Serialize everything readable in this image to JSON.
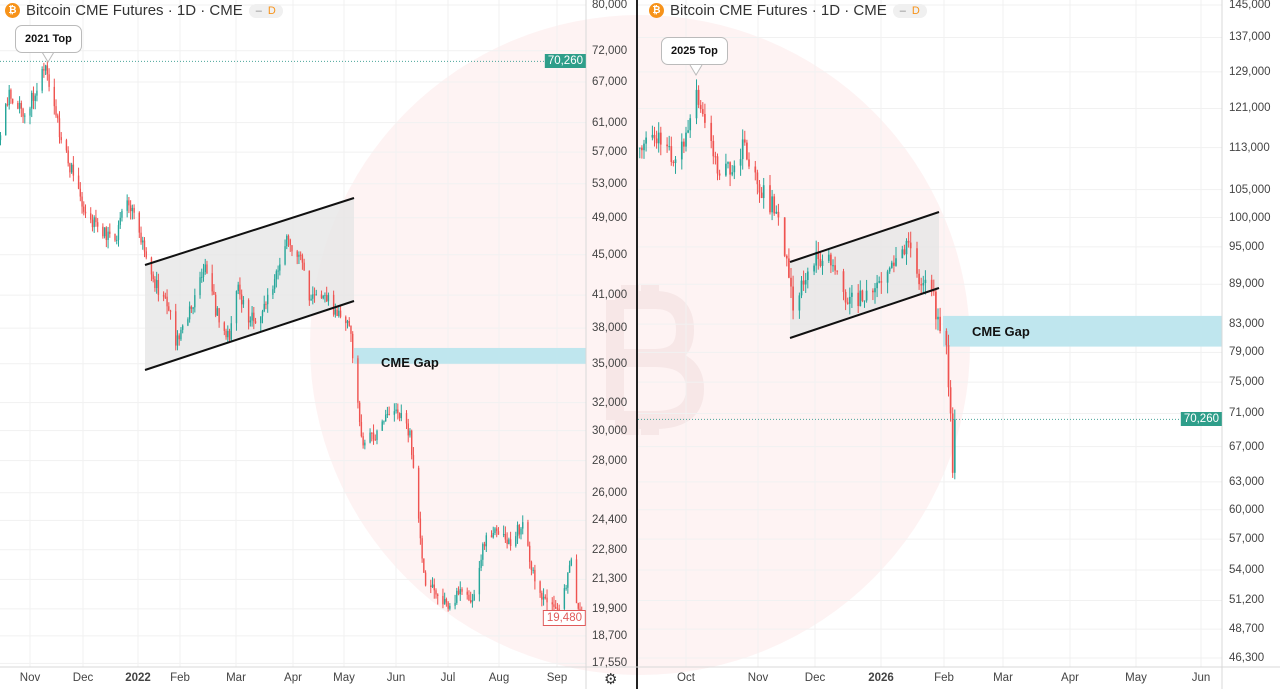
{
  "chart_data": [
    {
      "type": "candlestick",
      "title": "Bitcoin CME Futures · 1D · CME",
      "interval": "D",
      "y_scale": "log",
      "y_ticks": [
        "80,000",
        "72,000",
        "67,000",
        "61,000",
        "57,000",
        "53,000",
        "49,000",
        "45,000",
        "41,000",
        "38,000",
        "35,000",
        "32,000",
        "30,000",
        "28,000",
        "26,000",
        "24,400",
        "22,800",
        "21,300",
        "19,900",
        "18,700",
        "17,550"
      ],
      "x_ticks": [
        "Nov",
        "Dec",
        "2022",
        "Feb",
        "Mar",
        "Apr",
        "May",
        "Jun",
        "Jul",
        "Aug",
        "Sep"
      ],
      "price_line": {
        "value": 70260,
        "label": "70,260",
        "color": "#2e9e8a"
      },
      "last_price": {
        "value": 19480,
        "label": "19,480",
        "color": "#e05a5a"
      },
      "annotation_top": "2021 Top",
      "gap_label": "CME Gap",
      "gap_range": [
        35000,
        36300
      ],
      "closes": [
        [
          "2021-10-14",
          58600
        ],
        [
          "2021-10-20",
          65800
        ],
        [
          "2021-10-29",
          62000
        ],
        [
          "2021-11-10",
          69600
        ],
        [
          "2021-11-19",
          58600
        ],
        [
          "2021-11-26",
          54000
        ],
        [
          "2021-12-03",
          49500
        ],
        [
          "2021-12-10",
          48000
        ],
        [
          "2021-12-20",
          46500
        ],
        [
          "2021-12-27",
          51000
        ],
        [
          "2022-01-05",
          46500
        ],
        [
          "2022-01-10",
          43000
        ],
        [
          "2022-01-21",
          39500
        ],
        [
          "2022-01-24",
          36500
        ],
        [
          "2022-02-04",
          41000
        ],
        [
          "2022-02-10",
          44000
        ],
        [
          "2022-02-18",
          38500
        ],
        [
          "2022-02-24",
          37000
        ],
        [
          "2022-03-01",
          42000
        ],
        [
          "2022-03-07",
          38500
        ],
        [
          "2022-03-15",
          39500
        ],
        [
          "2022-03-25",
          44000
        ],
        [
          "2022-03-29",
          47000
        ],
        [
          "2022-04-05",
          45000
        ],
        [
          "2022-04-11",
          40500
        ],
        [
          "2022-04-20",
          41000
        ],
        [
          "2022-04-29",
          39000
        ],
        [
          "2022-05-05",
          37500
        ],
        [
          "2022-05-09",
          32000
        ],
        [
          "2022-05-12",
          29000
        ],
        [
          "2022-05-20",
          30000
        ],
        [
          "2022-05-31",
          31500
        ],
        [
          "2022-06-08",
          30000
        ],
        [
          "2022-06-13",
          24500
        ],
        [
          "2022-06-17",
          21000
        ],
        [
          "2022-06-24",
          20500
        ],
        [
          "2022-06-30",
          19900
        ],
        [
          "2022-07-08",
          20700
        ],
        [
          "2022-07-14",
          20300
        ],
        [
          "2022-07-20",
          23100
        ],
        [
          "2022-07-28",
          23800
        ],
        [
          "2022-08-05",
          23000
        ],
        [
          "2022-08-12",
          24300
        ],
        [
          "2022-08-19",
          21200
        ],
        [
          "2022-08-26",
          20200
        ],
        [
          "2022-09-02",
          19900
        ],
        [
          "2022-09-09",
          22300
        ],
        [
          "2022-09-13",
          19900
        ],
        [
          "2022-09-16",
          19480
        ]
      ]
    },
    {
      "type": "candlestick",
      "title": "Bitcoin CME Futures · 1D · CME",
      "interval": "D",
      "y_scale": "log",
      "y_ticks": [
        "145,000",
        "137,000",
        "129,000",
        "121,000",
        "113,000",
        "105,000",
        "100,000",
        "95,000",
        "89,000",
        "83,000",
        "79,000",
        "75,000",
        "71,000",
        "67,000",
        "63,000",
        "60,000",
        "57,000",
        "54,000",
        "51,200",
        "48,700",
        "46,300"
      ],
      "x_ticks": [
        "Oct",
        "Nov",
        "Dec",
        "2026",
        "Feb",
        "Mar",
        "Apr",
        "May",
        "Jun"
      ],
      "price_line": {
        "value": 70260,
        "label": "70,260",
        "color": "#2e9e8a"
      },
      "annotation_top": "2025 Top",
      "gap_label": "CME Gap",
      "gap_range": [
        79800,
        84200
      ],
      "closes": [
        [
          "2025-09-09",
          113000
        ],
        [
          "2025-09-18",
          116000
        ],
        [
          "2025-09-25",
          110000
        ],
        [
          "2025-10-01",
          116000
        ],
        [
          "2025-10-06",
          125000
        ],
        [
          "2025-10-10",
          118000
        ],
        [
          "2025-10-16",
          108000
        ],
        [
          "2025-10-24",
          109500
        ],
        [
          "2025-10-29",
          114000
        ],
        [
          "2025-11-04",
          106000
        ],
        [
          "2025-11-13",
          101000
        ],
        [
          "2025-11-19",
          90000
        ],
        [
          "2025-11-21",
          85000
        ],
        [
          "2025-11-28",
          91000
        ],
        [
          "2025-12-03",
          93000
        ],
        [
          "2025-12-10",
          92000
        ],
        [
          "2025-12-17",
          86000
        ],
        [
          "2025-12-26",
          88000
        ],
        [
          "2026-01-05",
          91000
        ],
        [
          "2026-01-14",
          96000
        ],
        [
          "2026-01-20",
          89000
        ],
        [
          "2026-01-26",
          88000
        ],
        [
          "2026-01-30",
          82000
        ],
        [
          "2026-02-02",
          80000
        ],
        [
          "2026-02-04",
          71000
        ],
        [
          "2026-02-05",
          64000
        ],
        [
          "2026-02-06",
          70260
        ]
      ]
    }
  ],
  "colors": {
    "up": "#26a69a",
    "down": "#ef5350",
    "gap": "#bfe6ee",
    "channel_fill": "#e6e6e6",
    "watermark": "#fdeeee"
  },
  "icons": [
    "bitcoin-icon",
    "settings-icon"
  ],
  "legend": {
    "title": "Bitcoin CME Futures · 1D · CME",
    "dash": "–",
    "interval": "D",
    "btc": "₿"
  },
  "settings_glyph": "⚙"
}
